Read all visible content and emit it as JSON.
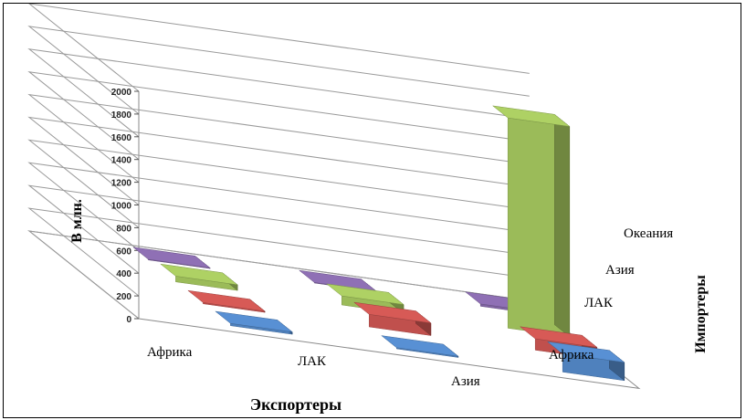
{
  "chart_data": {
    "type": "bar",
    "subtype": "3d-grid",
    "xlabel": "Экспортеры",
    "ylabel": "В млн.",
    "zlabel": "Импортеры",
    "exporters": [
      "Африка",
      "ЛАК",
      "Азия"
    ],
    "importers": [
      "Африка",
      "ЛАК",
      "Азия",
      "Океания"
    ],
    "yticks": [
      "0",
      "200",
      "400",
      "600",
      "800",
      "1000",
      "1200",
      "1400",
      "1600",
      "1800",
      "2000"
    ],
    "ylim": [
      0,
      2000
    ],
    "grid": true,
    "legend": "none",
    "series": [
      {
        "importer": "Африка",
        "color": "#4F81BD",
        "values": [
          20,
          10,
          160
        ]
      },
      {
        "importer": "ЛАК",
        "color": "#C0504D",
        "values": [
          10,
          110,
          100
        ]
      },
      {
        "importer": "Азия",
        "color": "#9BBB59",
        "values": [
          50,
          80,
          1850
        ]
      },
      {
        "importer": "Океания",
        "color": "#8064A2",
        "values": [
          5,
          5,
          20
        ]
      }
    ]
  }
}
